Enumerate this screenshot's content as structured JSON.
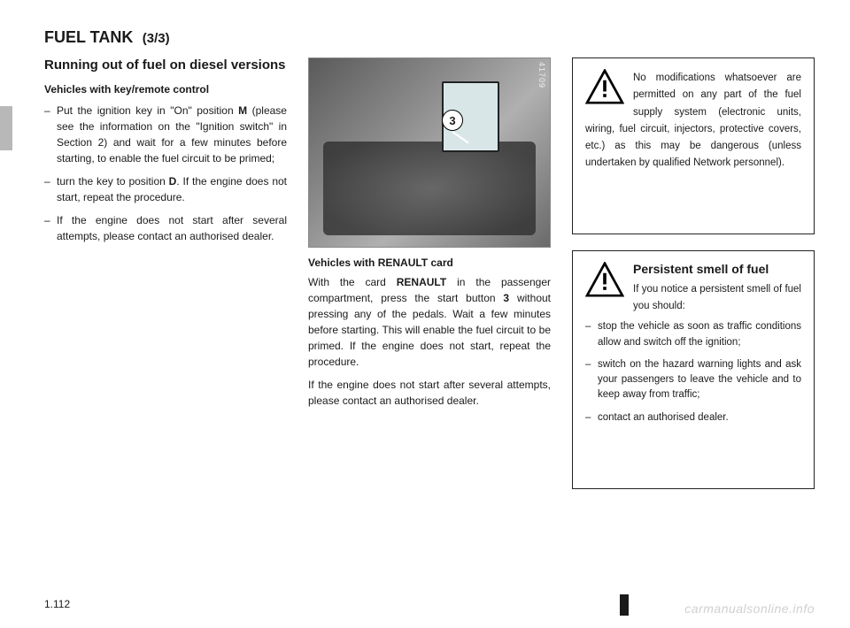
{
  "title": "FUEL TANK",
  "title_page": "(3/3)",
  "page_number": "1.112",
  "watermark": "carmanualsonline.info",
  "left": {
    "heading": "Running out of fuel on diesel versions",
    "subhead": "Vehicles with key/remote control",
    "bullets": [
      "Put the ignition key in \"On\" position <b>M</b> (please see the information on the \"Ignition switch\" in Section 2) and wait for a few minutes before starting, to enable the fuel circuit to be primed;",
      "turn the key to position <b>D</b>. If the engine does not start, repeat the procedure.",
      "If the engine does not start after several attempts, please contact an authorised dealer."
    ]
  },
  "center": {
    "figure_id": "41709",
    "callout": "3",
    "caption": "Vehicles with RENAULT card",
    "para1": "With the card <b>RENAULT</b> in the passenger compartment, press the start button <b>3</b> without pressing any of the pedals. Wait a few minutes before starting. This will enable the fuel circuit to be primed. If the engine does not start, repeat the procedure.",
    "para2": "If the engine does not start after several attempts, please contact an authorised dealer."
  },
  "box1": {
    "text": "No modifications whatsoever are permitted on any part of the fuel supply system (electronic units, wiring, fuel circuit, injectors, protective covers, etc.) as this may be dangerous (unless undertaken by qualified Network personnel)."
  },
  "box2": {
    "title": "Persistent smell of fuel",
    "intro": "If you notice a persistent smell of fuel you should:",
    "bullets": [
      "stop the vehicle as soon as traffic conditions allow and switch off the ignition;",
      "switch on the hazard warning lights and ask your passengers to leave the vehicle and to keep away from traffic;",
      "contact an authorised dealer."
    ]
  }
}
